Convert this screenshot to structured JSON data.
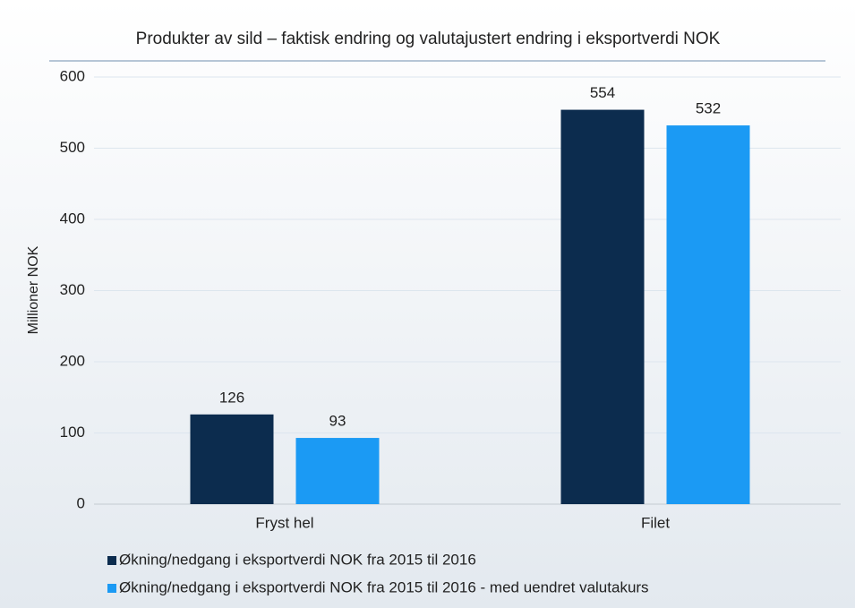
{
  "chart_data": {
    "type": "bar",
    "title": "Produkter av sild – faktisk endring og valutajustert endring i eksportverdi NOK",
    "y_label": "Millioner NOK",
    "categories": [
      "Fryst hel",
      "Filet"
    ],
    "series": [
      {
        "name": "Økning/nedgang i eksportverdi NOK fra 2015 til 2016",
        "color": "#0c2c4e",
        "values": [
          126,
          554
        ]
      },
      {
        "name": "Økning/nedgang i eksportverdi NOK fra 2015 til 2016 - med uendret valutakurs",
        "color": "#1b9af4",
        "values": [
          93,
          532
        ]
      }
    ],
    "ylim": [
      0,
      600
    ],
    "yticks": [
      0,
      100,
      200,
      300,
      400,
      500,
      600
    ],
    "grid": true
  }
}
